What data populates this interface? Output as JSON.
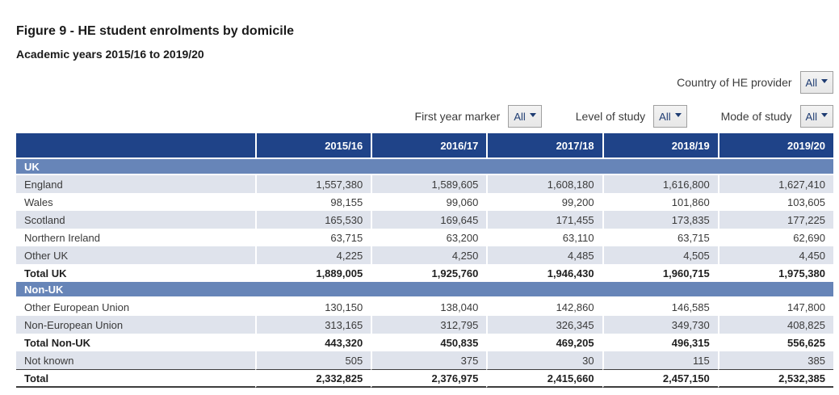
{
  "title": "Figure 9 - HE student enrolments by domicile",
  "subtitle": "Academic years 2015/16 to 2019/20",
  "colors": {
    "header_bg": "#1F4388",
    "section_bg": "#6785B8",
    "row_alt_bg": "#DFE3EC",
    "accent_text": "#1E3C72"
  },
  "filters": {
    "country": {
      "label": "Country of HE provider",
      "value": "All"
    },
    "first_year": {
      "label": "First year marker",
      "value": "All"
    },
    "level": {
      "label": "Level of study",
      "value": "All"
    },
    "mode": {
      "label": "Mode of study",
      "value": "All"
    }
  },
  "chart_data": {
    "type": "table",
    "title": "Figure 9 - HE student enrolments by domicile",
    "subtitle": "Academic years 2015/16 to 2019/20",
    "columns": [
      "2015/16",
      "2016/17",
      "2017/18",
      "2018/19",
      "2019/20"
    ],
    "rows": [
      {
        "type": "section",
        "label": "UK"
      },
      {
        "type": "data",
        "label": "England",
        "values": [
          "1,557,380",
          "1,589,605",
          "1,608,180",
          "1,616,800",
          "1,627,410"
        ]
      },
      {
        "type": "data",
        "label": "Wales",
        "values": [
          "98,155",
          "99,060",
          "99,200",
          "101,860",
          "103,605"
        ]
      },
      {
        "type": "data",
        "label": "Scotland",
        "values": [
          "165,530",
          "169,645",
          "171,455",
          "173,835",
          "177,225"
        ]
      },
      {
        "type": "data",
        "label": "Northern Ireland",
        "values": [
          "63,715",
          "63,200",
          "63,110",
          "63,715",
          "62,690"
        ]
      },
      {
        "type": "data",
        "label": "Other UK",
        "values": [
          "4,225",
          "4,250",
          "4,485",
          "4,505",
          "4,450"
        ]
      },
      {
        "type": "total",
        "label": "Total UK",
        "values": [
          "1,889,005",
          "1,925,760",
          "1,946,430",
          "1,960,715",
          "1,975,380"
        ]
      },
      {
        "type": "section",
        "label": "Non-UK"
      },
      {
        "type": "data",
        "label": "Other European Union",
        "values": [
          "130,150",
          "138,040",
          "142,860",
          "146,585",
          "147,800"
        ]
      },
      {
        "type": "data",
        "label": "Non-European Union",
        "values": [
          "313,165",
          "312,795",
          "326,345",
          "349,730",
          "408,825"
        ]
      },
      {
        "type": "total",
        "label": "Total Non-UK",
        "values": [
          "443,320",
          "450,835",
          "469,205",
          "496,315",
          "556,625"
        ]
      },
      {
        "type": "data",
        "label": "Not known",
        "values": [
          "505",
          "375",
          "30",
          "115",
          "385"
        ]
      },
      {
        "type": "grand",
        "label": "Total",
        "values": [
          "2,332,825",
          "2,376,975",
          "2,415,660",
          "2,457,150",
          "2,532,385"
        ]
      }
    ]
  }
}
